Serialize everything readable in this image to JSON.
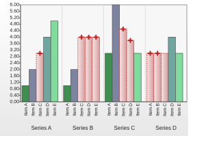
{
  "chart_data": {
    "type": "bar",
    "categories": [
      "Series A",
      "Series B",
      "Series C",
      "Series D"
    ],
    "series": [
      {
        "name": "Item A",
        "color": "#3f8f50",
        "values": [
          1.0,
          1.0,
          3.0,
          3.0
        ],
        "colors": [
          "#3f8f50",
          "#3f8f50",
          "#3f8f50",
          "#e3b3b3"
        ],
        "markers": [
          false,
          false,
          false,
          true
        ]
      },
      {
        "name": "Item B",
        "color": "#7d84a0",
        "values": [
          2.0,
          2.0,
          6.0,
          3.0
        ],
        "colors": [
          "#7d84a0",
          "#7d84a0",
          "#7d84a0",
          "#e3b3b3"
        ],
        "markers": [
          false,
          false,
          false,
          true
        ]
      },
      {
        "name": "Item C",
        "color": "#e3b3b3",
        "values": [
          3.0,
          4.0,
          4.5,
          3.0
        ],
        "colors": [
          "#e3b3b3",
          "#e3b3b3",
          "#e3b3b3",
          "#e3b3b3"
        ],
        "markers": [
          true,
          true,
          true,
          false
        ]
      },
      {
        "name": "Item D",
        "color": "#6fa6a0",
        "values": [
          4.0,
          4.0,
          3.8,
          4.0
        ],
        "colors": [
          "#6fa6a0",
          "#e3b3b3",
          "#e3b3b3",
          "#6fa6a0"
        ],
        "markers": [
          false,
          true,
          true,
          false
        ]
      },
      {
        "name": "Item E",
        "color": "#7fdc9c",
        "values": [
          5.0,
          4.0,
          3.0,
          3.0
        ],
        "colors": [
          "#7fdc9c",
          "#e3b3b3",
          "#7fdc9c",
          "#7fdc9c"
        ],
        "markers": [
          false,
          true,
          false,
          false
        ]
      }
    ],
    "highlight_color": "#e3b3b3",
    "marker_color": "#c02020",
    "ylim": [
      0,
      6
    ],
    "yticks": [
      {
        "value": 0,
        "label": "0.00"
      },
      {
        "value": 0.4,
        "label": "0.40"
      },
      {
        "value": 0.8,
        "label": "0.80"
      },
      {
        "value": 1.2,
        "label": "1.20"
      },
      {
        "value": 1.6,
        "label": "1.60"
      },
      {
        "value": 2.0,
        "label": "2.00"
      },
      {
        "value": 2.4,
        "label": "2.40"
      },
      {
        "value": 2.8,
        "label": "2.80"
      },
      {
        "value": 3.2,
        "label": "3.20"
      },
      {
        "value": 3.6,
        "label": "3.60"
      },
      {
        "value": 4.0,
        "label": "4.00"
      },
      {
        "value": 4.4,
        "label": "4.40"
      },
      {
        "value": 4.8,
        "label": "4.80"
      },
      {
        "value": 5.2,
        "label": "5.20"
      },
      {
        "value": 5.6,
        "label": "5.60"
      },
      {
        "value": 6,
        "label": "6.00"
      }
    ]
  }
}
